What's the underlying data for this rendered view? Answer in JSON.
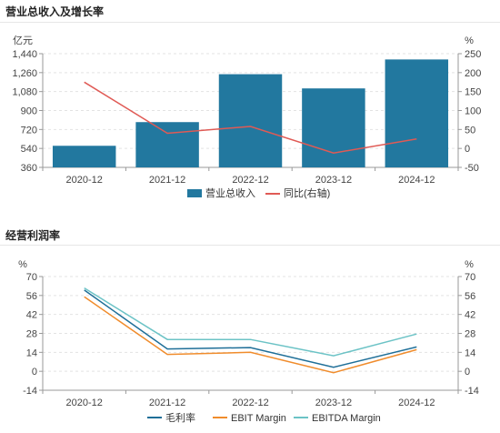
{
  "panel1": {
    "title": "营业总收入及增长率",
    "chart_data": {
      "type": "bar",
      "categories": [
        "2020-12",
        "2021-12",
        "2022-12",
        "2023-12",
        "2024-12"
      ],
      "left_axis": {
        "unit": "亿元",
        "ylim": [
          360,
          1440
        ],
        "ticks": [
          "360",
          "540",
          "720",
          "900",
          "1,080",
          "1,260",
          "1,440"
        ]
      },
      "right_axis": {
        "unit": "%",
        "ylim": [
          -50,
          250
        ],
        "ticks": [
          "-50",
          "0",
          "50",
          "100",
          "150",
          "200",
          "250"
        ]
      },
      "series": [
        {
          "name": "营业总收入",
          "kind": "bar",
          "axis": "left",
          "color": "#22789f",
          "values": [
            565,
            790,
            1245,
            1110,
            1385
          ]
        },
        {
          "name": "同比(右轴)",
          "kind": "line",
          "axis": "right",
          "color": "#e05a55",
          "values": [
            175,
            40,
            58,
            -12,
            25
          ]
        }
      ],
      "grid": true,
      "legend": "bottom"
    }
  },
  "panel2": {
    "title": "经营利润率",
    "chart_data": {
      "type": "line",
      "categories": [
        "2020-12",
        "2021-12",
        "2022-12",
        "2023-12",
        "2024-12"
      ],
      "left_axis": {
        "unit": "%",
        "ylim": [
          -14,
          70
        ],
        "ticks": [
          "-14",
          "0",
          "14",
          "28",
          "42",
          "56",
          "70"
        ]
      },
      "right_axis": {
        "unit": "%",
        "ylim": [
          -14,
          70
        ],
        "ticks": [
          "-14",
          "0",
          "14",
          "28",
          "42",
          "56",
          "70"
        ]
      },
      "series": [
        {
          "name": "毛利率",
          "color": "#1f6f98",
          "values": [
            60,
            16.5,
            17.5,
            3,
            18
          ]
        },
        {
          "name": "EBIT Margin",
          "color": "#f08c2c",
          "values": [
            55,
            12.5,
            14,
            -1,
            16
          ]
        },
        {
          "name": "EBITDA Margin",
          "color": "#6cc3c6",
          "values": [
            61.5,
            23.5,
            23.5,
            11.5,
            27.5
          ]
        }
      ],
      "grid": true,
      "legend": "bottom"
    }
  }
}
